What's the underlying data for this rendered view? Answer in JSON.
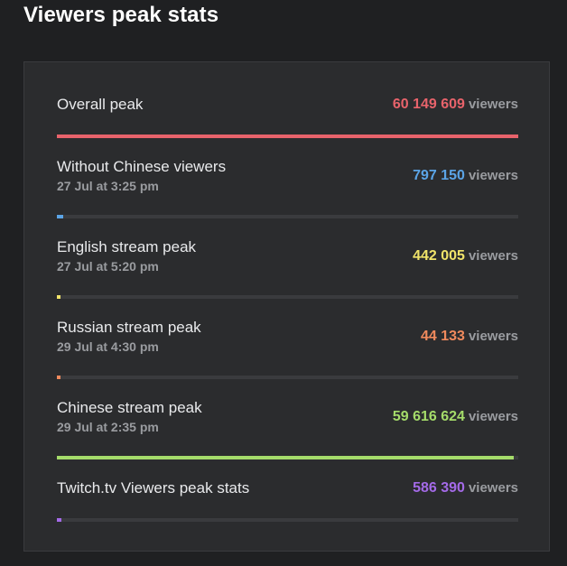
{
  "header": {
    "title": "Viewers peak stats"
  },
  "unit_label": "viewers",
  "rows": [
    {
      "label": "Overall peak",
      "date": "",
      "value": "60 149 609",
      "color": "#e8636b",
      "fill": 1.0
    },
    {
      "label": "Without Chinese viewers",
      "date": "27 Jul at 3:25 pm",
      "value": "797 150",
      "color": "#5ba4e6",
      "fill": 0.013
    },
    {
      "label": "English stream peak",
      "date": "27 Jul at 5:20 pm",
      "value": "442 005",
      "color": "#f1e46a",
      "fill": 0.007
    },
    {
      "label": "Russian stream peak",
      "date": "29 Jul at 4:30 pm",
      "value": "44 133",
      "color": "#f08a5d",
      "fill": 0.001
    },
    {
      "label": "Chinese stream peak",
      "date": "29 Jul at 2:35 pm",
      "value": "59 616 624",
      "color": "#a5dc6a",
      "fill": 0.991
    },
    {
      "label": "Twitch.tv Viewers peak stats",
      "date": "",
      "value": "586 390",
      "color": "#a46ae8",
      "fill": 0.0097
    }
  ]
}
